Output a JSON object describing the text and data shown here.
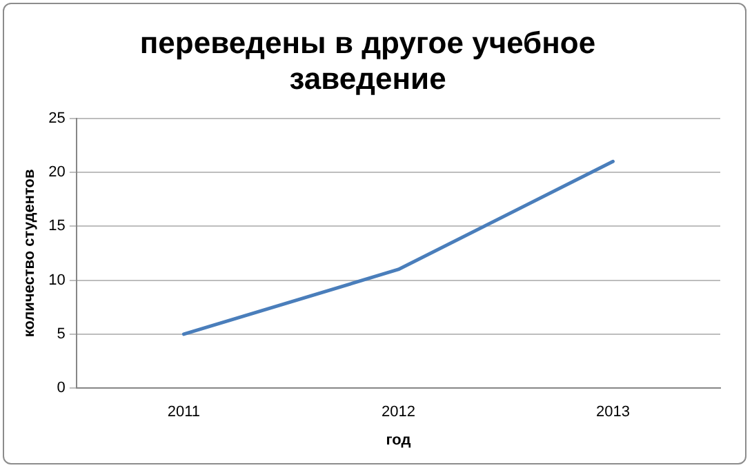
{
  "chart_data": {
    "type": "line",
    "title": "переведены в другое учебное заведение",
    "xlabel": "год",
    "ylabel": "количество студентов",
    "categories": [
      "2011",
      "2012",
      "2013"
    ],
    "series": [
      {
        "color": "#4a7ebb",
        "values": [
          5,
          11,
          21
        ]
      }
    ],
    "ylim": [
      0,
      25
    ],
    "yticks": [
      0,
      5,
      10,
      15,
      20,
      25
    ],
    "grid": "y",
    "legend": false,
    "marker": "none",
    "line_style": "solid"
  }
}
